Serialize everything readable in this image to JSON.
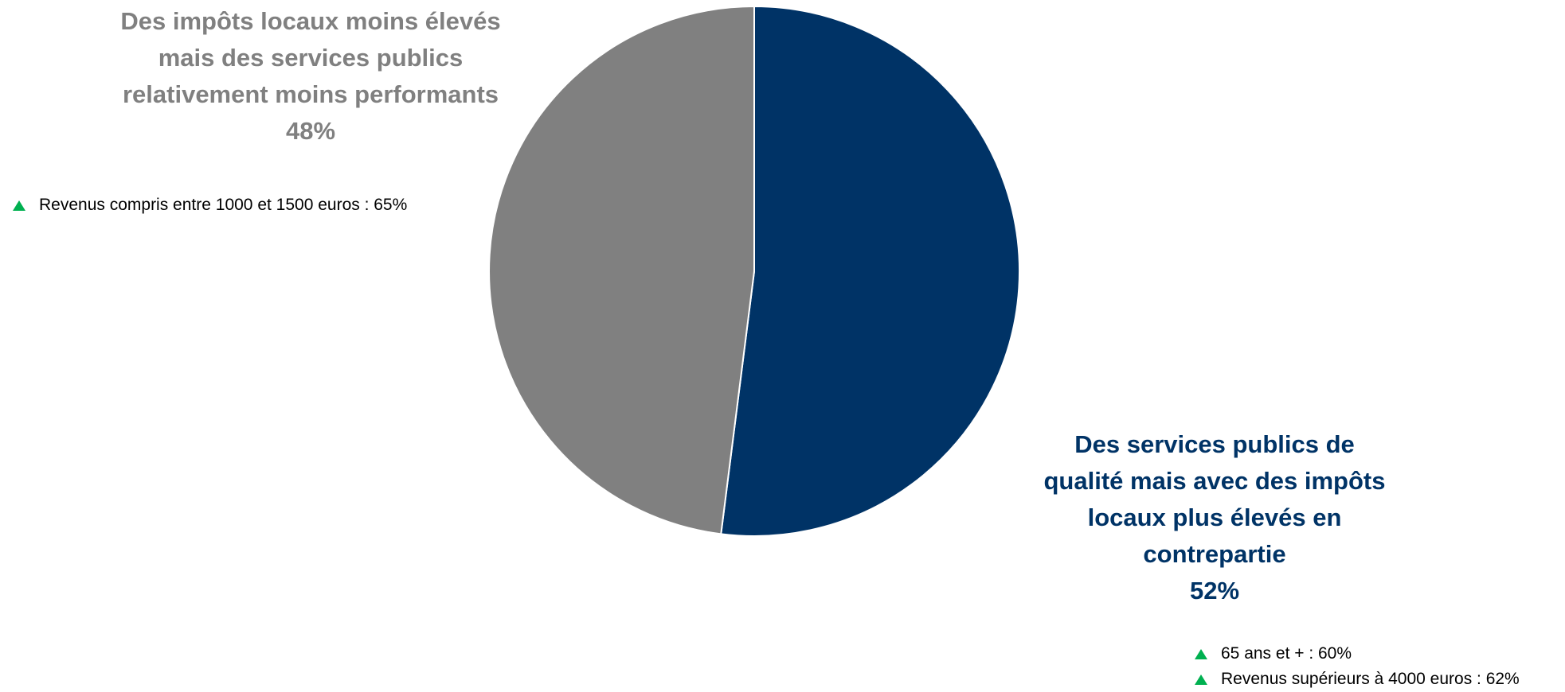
{
  "chart_data": {
    "type": "pie",
    "slices": [
      {
        "label_lines": [
          "Des services publics de",
          "qualité mais avec des impôts",
          "locaux plus élevés en",
          "contrepartie"
        ],
        "value": 52,
        "value_label": "52%",
        "color": "#003366"
      },
      {
        "label_lines": [
          "Des impôts locaux moins élevés",
          "mais des services publics",
          "relativement moins performants"
        ],
        "value": 48,
        "value_label": "48%",
        "color": "#808080"
      }
    ],
    "start_angle_deg": 0,
    "direction": "clockwise",
    "separator_color": "#ffffff"
  },
  "annotations": {
    "marker_color": "#00b050",
    "gray_slice_notes": [
      "Revenus compris entre 1000 et 1500 euros : 65%"
    ],
    "blue_slice_notes": [
      "65 ans et + : 60%",
      "Revenus supérieurs à 4000 euros : 62%"
    ]
  }
}
